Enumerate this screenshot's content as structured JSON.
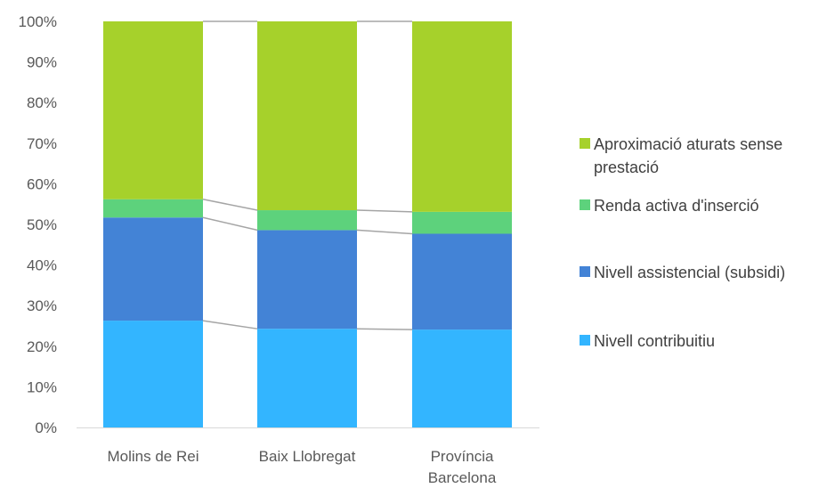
{
  "chart_data": {
    "type": "bar",
    "stacked": true,
    "percent_stacked": true,
    "categories": [
      "Molins de Rei",
      "Baix Llobregat",
      "Província Barcelona"
    ],
    "category_label_lines": [
      [
        "Molins de Rei"
      ],
      [
        "Baix Llobregat"
      ],
      [
        "Província",
        "Barcelona"
      ]
    ],
    "series": [
      {
        "name": "Nivell contribuitiu",
        "color": "#33B5FF",
        "values": [
          26.3,
          24.3,
          24.1
        ]
      },
      {
        "name": "Nivell assistencial (subsidi)",
        "color": "#4383D6",
        "values": [
          25.4,
          24.3,
          23.6
        ]
      },
      {
        "name": "Renda activa d'inserció",
        "color": "#5DD27C",
        "values": [
          4.5,
          4.9,
          5.4
        ]
      },
      {
        "name": "Aproximació aturats sense prestació",
        "color": "#A6D12B",
        "values": [
          43.8,
          46.5,
          46.9
        ]
      }
    ],
    "legend": {
      "position": "right",
      "order": [
        3,
        2,
        1,
        0
      ],
      "label_lines": {
        "Aproximació aturats sense prestació": [
          "Aproximació aturats sense",
          "prestació"
        ]
      }
    },
    "series_lines": true,
    "ylim": [
      0,
      100
    ],
    "yticks": [
      "0%",
      "10%",
      "20%",
      "30%",
      "40%",
      "50%",
      "60%",
      "70%",
      "80%",
      "90%",
      "100%"
    ],
    "title": "",
    "xlabel": "",
    "ylabel": ""
  }
}
